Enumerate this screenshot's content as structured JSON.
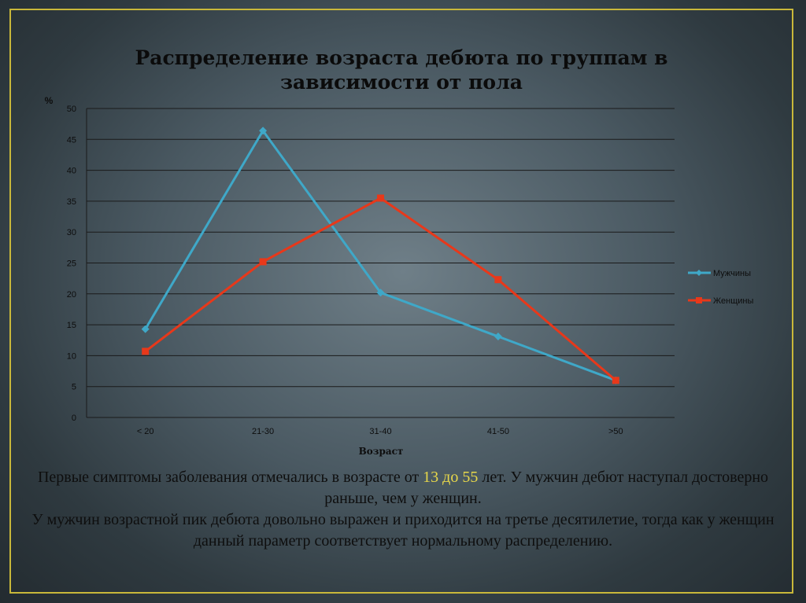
{
  "slide": {
    "title": "Распределение возраста дебюта по группам в зависимости от пола",
    "paragraph1": {
      "before": "Первые симптомы заболевания отмечались в возрасте от ",
      "highlight": "13 до 55",
      "after": " лет. У мужчин дебют наступал достоверно раньше, чем у женщин."
    },
    "paragraph2": "У мужчин возрастной пик дебюта довольно выражен и приходится на третье десятилетие, тогда как у женщин данный параметр соответствует нормальному распределению."
  },
  "colors": {
    "men": "#3fa8c8",
    "women": "#e8381a",
    "grid": "#1a1a1a",
    "highlight": "#e8d84a"
  },
  "chart_data": {
    "type": "line",
    "title": "Распределение возраста дебюта по группам в зависимости от пола",
    "xlabel": "Возраст",
    "ylabel": "%",
    "categories": [
      "< 20",
      "21-30",
      "31-40",
      "41-50",
      ">50"
    ],
    "ylim": [
      0,
      50
    ],
    "yticks": [
      0,
      5,
      10,
      15,
      20,
      25,
      30,
      35,
      40,
      45,
      50
    ],
    "grid": true,
    "legend": "right",
    "series": [
      {
        "name": "Мужчины",
        "marker": "diamond",
        "values": [
          14.3,
          46.4,
          20.2,
          13.1,
          6.0
        ]
      },
      {
        "name": "Женщины",
        "marker": "square",
        "values": [
          10.7,
          25.2,
          35.5,
          22.3,
          6.0
        ]
      }
    ]
  }
}
